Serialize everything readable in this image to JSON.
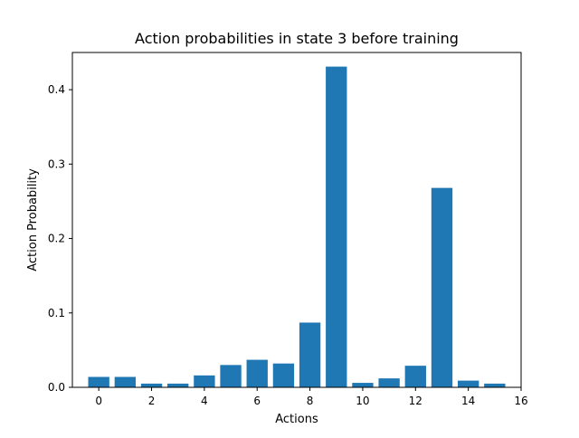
{
  "chart_data": {
    "type": "bar",
    "title": "Action probabilities in state 3 before training",
    "xlabel": "Actions",
    "ylabel": "Action Probability",
    "categories": [
      0,
      1,
      2,
      3,
      4,
      5,
      6,
      7,
      8,
      9,
      10,
      11,
      12,
      13,
      14,
      15
    ],
    "values": [
      0.014,
      0.014,
      0.005,
      0.005,
      0.016,
      0.03,
      0.037,
      0.032,
      0.087,
      0.431,
      0.006,
      0.012,
      0.029,
      0.268,
      0.009,
      0.005
    ],
    "xlim": [
      -1,
      16
    ],
    "ylim": [
      0,
      0.45
    ],
    "xticks": [
      "0",
      "2",
      "4",
      "6",
      "8",
      "10",
      "12",
      "14",
      "16"
    ],
    "yticks": [
      "0.0",
      "0.1",
      "0.2",
      "0.3",
      "0.4"
    ],
    "bar_color": "#1f77b4",
    "grid": false,
    "legend": null
  }
}
